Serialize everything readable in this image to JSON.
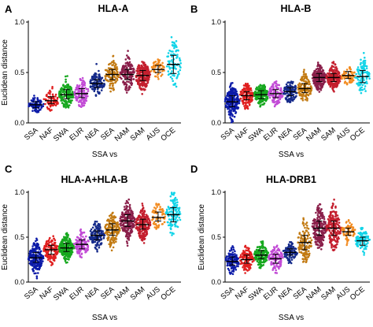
{
  "figure": {
    "panels": [
      "A",
      "B",
      "C",
      "D"
    ]
  },
  "chart_data": [
    {
      "panel": "A",
      "type": "scatter",
      "title": "HLA-A",
      "xlabel": "SSA vs",
      "ylabel": "Euclidean distance",
      "ylim": [
        0.0,
        1.0
      ],
      "yticks": [
        "0.0",
        "0.5",
        "1.0"
      ],
      "categories": [
        "SSA",
        "NAF",
        "SWA",
        "EUR",
        "NEA",
        "SEA",
        "NAM",
        "SAM",
        "AUS",
        "OCE"
      ],
      "colors": [
        "#0b1aa8",
        "#e01f1f",
        "#17a81f",
        "#c24bd6",
        "#152a8a",
        "#c27a12",
        "#8a1f4a",
        "#c41f2e",
        "#f28a1e",
        "#12d4e8"
      ],
      "medians": [
        0.18,
        0.22,
        0.28,
        0.29,
        0.39,
        0.48,
        0.48,
        0.47,
        0.53,
        0.58
      ],
      "quartiles": [
        [
          0.15,
          0.21
        ],
        [
          0.19,
          0.26
        ],
        [
          0.24,
          0.33
        ],
        [
          0.25,
          0.34
        ],
        [
          0.35,
          0.43
        ],
        [
          0.43,
          0.53
        ],
        [
          0.43,
          0.53
        ],
        [
          0.42,
          0.52
        ],
        [
          0.5,
          0.57
        ],
        [
          0.49,
          0.67
        ]
      ],
      "ranges": [
        [
          0.1,
          0.3
        ],
        [
          0.12,
          0.38
        ],
        [
          0.15,
          0.47
        ],
        [
          0.15,
          0.46
        ],
        [
          0.25,
          0.6
        ],
        [
          0.28,
          0.73
        ],
        [
          0.25,
          0.75
        ],
        [
          0.28,
          0.71
        ],
        [
          0.42,
          0.63
        ],
        [
          0.35,
          0.85
        ]
      ],
      "counts": [
        90,
        70,
        150,
        120,
        120,
        110,
        150,
        200,
        50,
        90
      ]
    },
    {
      "panel": "B",
      "type": "scatter",
      "title": "HLA-B",
      "xlabel": "SSA vs",
      "ylabel": "",
      "ylim": [
        0.0,
        1.0
      ],
      "yticks": [
        "0.0",
        "0.5",
        "1.0"
      ],
      "categories": [
        "SSA",
        "NAF",
        "SWA",
        "EUR",
        "NEA",
        "SEA",
        "NAM",
        "SAM",
        "AUS",
        "OCE"
      ],
      "colors": [
        "#0b1aa8",
        "#e01f1f",
        "#17a81f",
        "#c24bd6",
        "#152a8a",
        "#c27a12",
        "#8a1f4a",
        "#c41f2e",
        "#f28a1e",
        "#12d4e8"
      ],
      "medians": [
        0.21,
        0.27,
        0.28,
        0.29,
        0.31,
        0.34,
        0.45,
        0.45,
        0.47,
        0.46
      ],
      "quartiles": [
        [
          0.16,
          0.27
        ],
        [
          0.23,
          0.31
        ],
        [
          0.24,
          0.32
        ],
        [
          0.25,
          0.33
        ],
        [
          0.27,
          0.35
        ],
        [
          0.3,
          0.39
        ],
        [
          0.41,
          0.49
        ],
        [
          0.41,
          0.49
        ],
        [
          0.44,
          0.51
        ],
        [
          0.4,
          0.52
        ]
      ],
      "ranges": [
        [
          0.0,
          0.42
        ],
        [
          0.14,
          0.4
        ],
        [
          0.16,
          0.38
        ],
        [
          0.16,
          0.42
        ],
        [
          0.2,
          0.42
        ],
        [
          0.2,
          0.59
        ],
        [
          0.3,
          0.62
        ],
        [
          0.3,
          0.72
        ],
        [
          0.38,
          0.56
        ],
        [
          0.28,
          0.7
        ]
      ],
      "counts": [
        200,
        130,
        180,
        120,
        120,
        140,
        220,
        220,
        60,
        100
      ]
    },
    {
      "panel": "C",
      "type": "scatter",
      "title": "HLA-A+HLA-B",
      "xlabel": "SSA vs",
      "ylabel": "Euclidean distance",
      "ylim": [
        0.0,
        1.0
      ],
      "yticks": [
        "0.0",
        "0.5",
        "1.0"
      ],
      "categories": [
        "SSA",
        "NAF",
        "SWA",
        "EUR",
        "NEA",
        "SEA",
        "NAM",
        "SAM",
        "AUS",
        "OCE"
      ],
      "colors": [
        "#0b1aa8",
        "#e01f1f",
        "#17a81f",
        "#c24bd6",
        "#152a8a",
        "#c27a12",
        "#8a1f4a",
        "#c41f2e",
        "#f28a1e",
        "#12d4e8"
      ],
      "medians": [
        0.27,
        0.36,
        0.38,
        0.42,
        0.52,
        0.58,
        0.68,
        0.64,
        0.72,
        0.75
      ],
      "quartiles": [
        [
          0.22,
          0.33
        ],
        [
          0.31,
          0.41
        ],
        [
          0.34,
          0.43
        ],
        [
          0.37,
          0.47
        ],
        [
          0.47,
          0.57
        ],
        [
          0.52,
          0.65
        ],
        [
          0.62,
          0.75
        ],
        [
          0.59,
          0.7
        ],
        [
          0.68,
          0.78
        ],
        [
          0.67,
          0.83
        ]
      ],
      "ranges": [
        [
          0.02,
          0.5
        ],
        [
          0.18,
          0.52
        ],
        [
          0.2,
          0.55
        ],
        [
          0.22,
          0.6
        ],
        [
          0.33,
          0.68
        ],
        [
          0.35,
          0.9
        ],
        [
          0.4,
          0.92
        ],
        [
          0.38,
          0.88
        ],
        [
          0.58,
          0.88
        ],
        [
          0.5,
          1.0
        ]
      ],
      "counts": [
        200,
        130,
        220,
        120,
        130,
        140,
        220,
        220,
        60,
        110
      ]
    },
    {
      "panel": "D",
      "type": "scatter",
      "title": "HLA-DRB1",
      "xlabel": "SSA vs",
      "ylabel": "Euclidean distance",
      "ylim": [
        0.0,
        1.0
      ],
      "yticks": [
        "0.0",
        "0.5",
        "1.0"
      ],
      "categories": [
        "SSA",
        "NAF",
        "SWA",
        "EUR",
        "NEA",
        "SEA",
        "NAM",
        "SAM",
        "AUS",
        "OCE"
      ],
      "colors": [
        "#0b1aa8",
        "#e01f1f",
        "#17a81f",
        "#c24bd6",
        "#152a8a",
        "#c27a12",
        "#8a1f4a",
        "#c41f2e",
        "#f28a1e",
        "#12d4e8"
      ],
      "medians": [
        0.23,
        0.25,
        0.3,
        0.26,
        0.33,
        0.44,
        0.6,
        0.6,
        0.56,
        0.46
      ],
      "quartiles": [
        [
          0.19,
          0.28
        ],
        [
          0.21,
          0.3
        ],
        [
          0.26,
          0.35
        ],
        [
          0.21,
          0.31
        ],
        [
          0.3,
          0.37
        ],
        [
          0.36,
          0.52
        ],
        [
          0.52,
          0.68
        ],
        [
          0.52,
          0.68
        ],
        [
          0.52,
          0.6
        ],
        [
          0.41,
          0.5
        ]
      ],
      "ranges": [
        [
          0.08,
          0.4
        ],
        [
          0.1,
          0.42
        ],
        [
          0.15,
          0.5
        ],
        [
          0.1,
          0.45
        ],
        [
          0.2,
          0.45
        ],
        [
          0.22,
          0.72
        ],
        [
          0.35,
          0.88
        ],
        [
          0.35,
          0.92
        ],
        [
          0.4,
          0.7
        ],
        [
          0.3,
          0.62
        ]
      ],
      "counts": [
        120,
        120,
        150,
        120,
        110,
        120,
        200,
        200,
        60,
        90
      ]
    }
  ]
}
